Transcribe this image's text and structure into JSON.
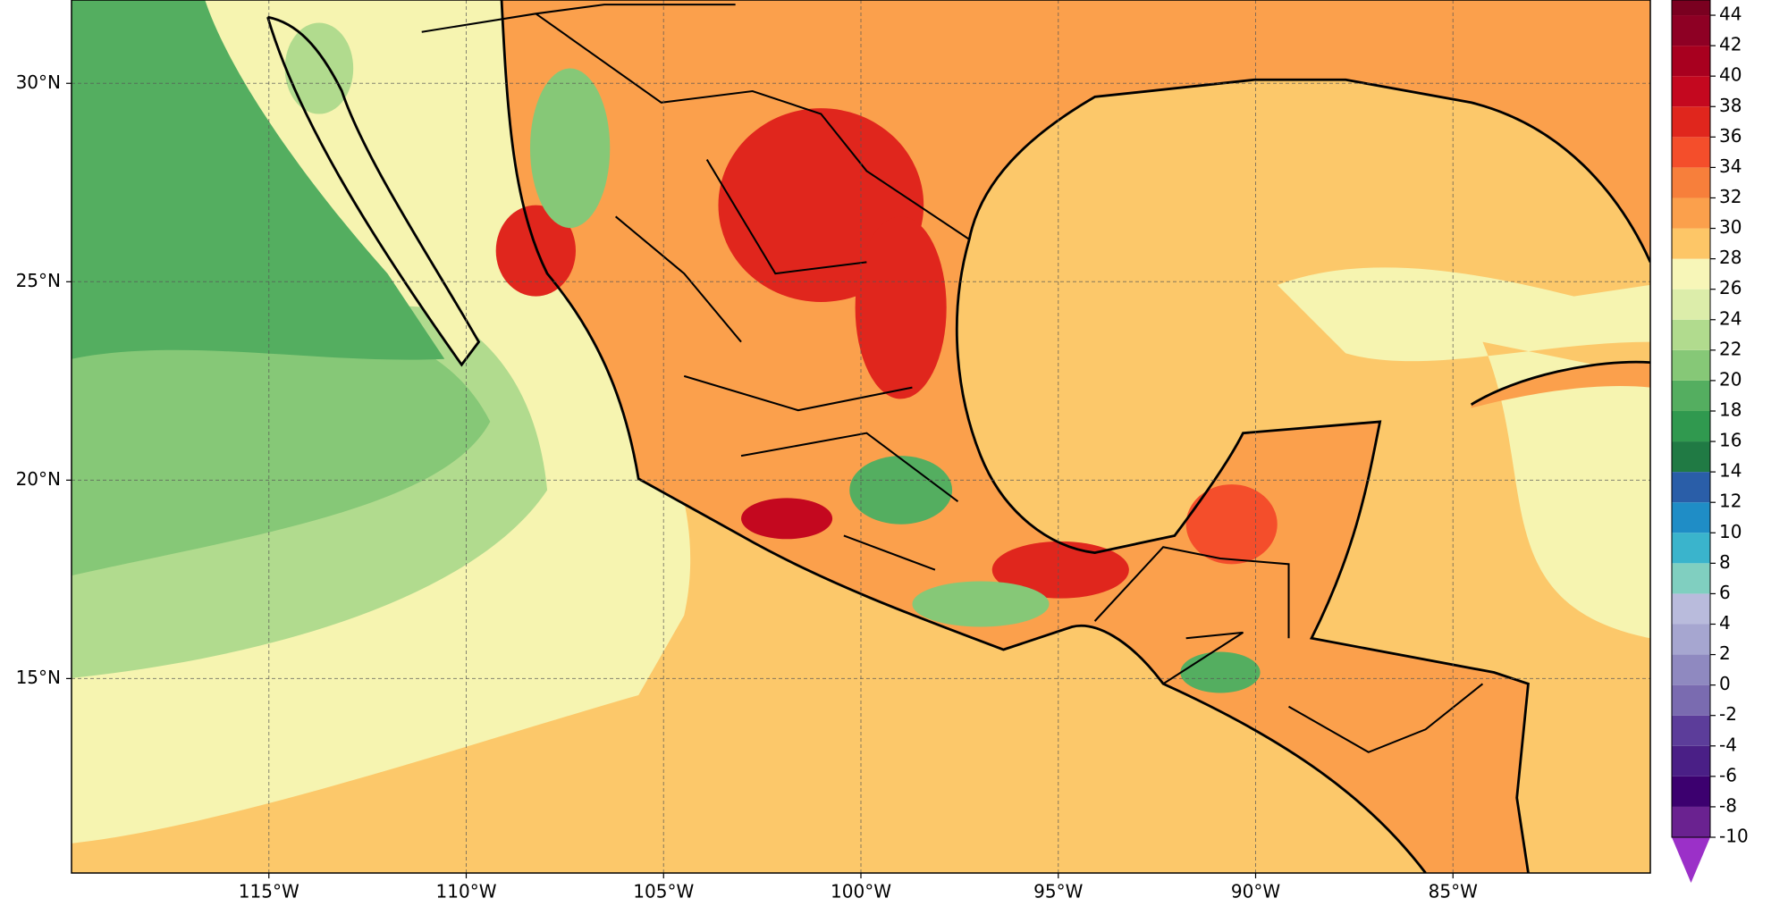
{
  "map": {
    "xlim": [
      -120,
      -80
    ],
    "ylim": [
      10.1,
      32.1
    ],
    "xticks": [
      {
        "value": -115,
        "label": "115°W"
      },
      {
        "value": -110,
        "label": "110°W"
      },
      {
        "value": -105,
        "label": "105°W"
      },
      {
        "value": -100,
        "label": "100°W"
      },
      {
        "value": -95,
        "label": "95°W"
      },
      {
        "value": -90,
        "label": "90°W"
      },
      {
        "value": -85,
        "label": "85°W"
      }
    ],
    "yticks": [
      {
        "value": 15,
        "label": "15°N"
      },
      {
        "value": 20,
        "label": "20°N"
      },
      {
        "value": 25,
        "label": "25°N"
      },
      {
        "value": 30,
        "label": "30°N"
      }
    ]
  },
  "colorbar": {
    "clim": [
      -10,
      45
    ],
    "under_color": "#9b30c8",
    "levels": [
      -10,
      -8,
      -6,
      -4,
      -2,
      0,
      2,
      4,
      6,
      8,
      10,
      12,
      14,
      16,
      18,
      20,
      22,
      24,
      26,
      28,
      30,
      32,
      34,
      36,
      38,
      40,
      42,
      44
    ],
    "colors": [
      "#6a2290",
      "#3c006f",
      "#4a1f86",
      "#5c3d9a",
      "#7a6bb0",
      "#8f89c0",
      "#a6a6d0",
      "#b9bbdc",
      "#80cfc0",
      "#3ab4cc",
      "#1f8dc6",
      "#2a5ea8",
      "#207a44",
      "#30994f",
      "#54ae60",
      "#86c877",
      "#b1db8e",
      "#dcedaa",
      "#f7f6b8",
      "#fdc667",
      "#fba04c",
      "#f77f3b",
      "#f44e2b",
      "#e0261d",
      "#c4081f",
      "#a8001f",
      "#8e0024",
      "#7a0020"
    ]
  }
}
